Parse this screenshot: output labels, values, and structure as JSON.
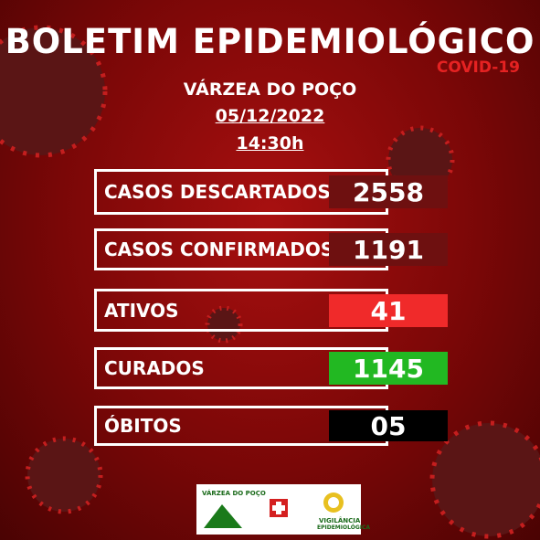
{
  "header": {
    "title": "BOLETIM EPIDEMIOLÓGICO",
    "subtitle": "COVID-19",
    "location": "VÁRZEA DO POÇO",
    "date": "05/12/2022",
    "time": "14:30h"
  },
  "rows": [
    {
      "label": "CASOS DESCARTADOS",
      "value": "2558"
    },
    {
      "label": "CASOS CONFIRMADOS",
      "value": "1191"
    },
    {
      "label": "ATIVOS",
      "value": "41"
    },
    {
      "label": "CURADOS",
      "value": "1145"
    },
    {
      "label": "ÓBITOS",
      "value": "05"
    }
  ],
  "footer": {
    "logo_left": "VÁRZEA DO POÇO",
    "logo_right_1": "VIGILÂNCIA",
    "logo_right_2": "EPIDEMIOLÓGICA"
  }
}
